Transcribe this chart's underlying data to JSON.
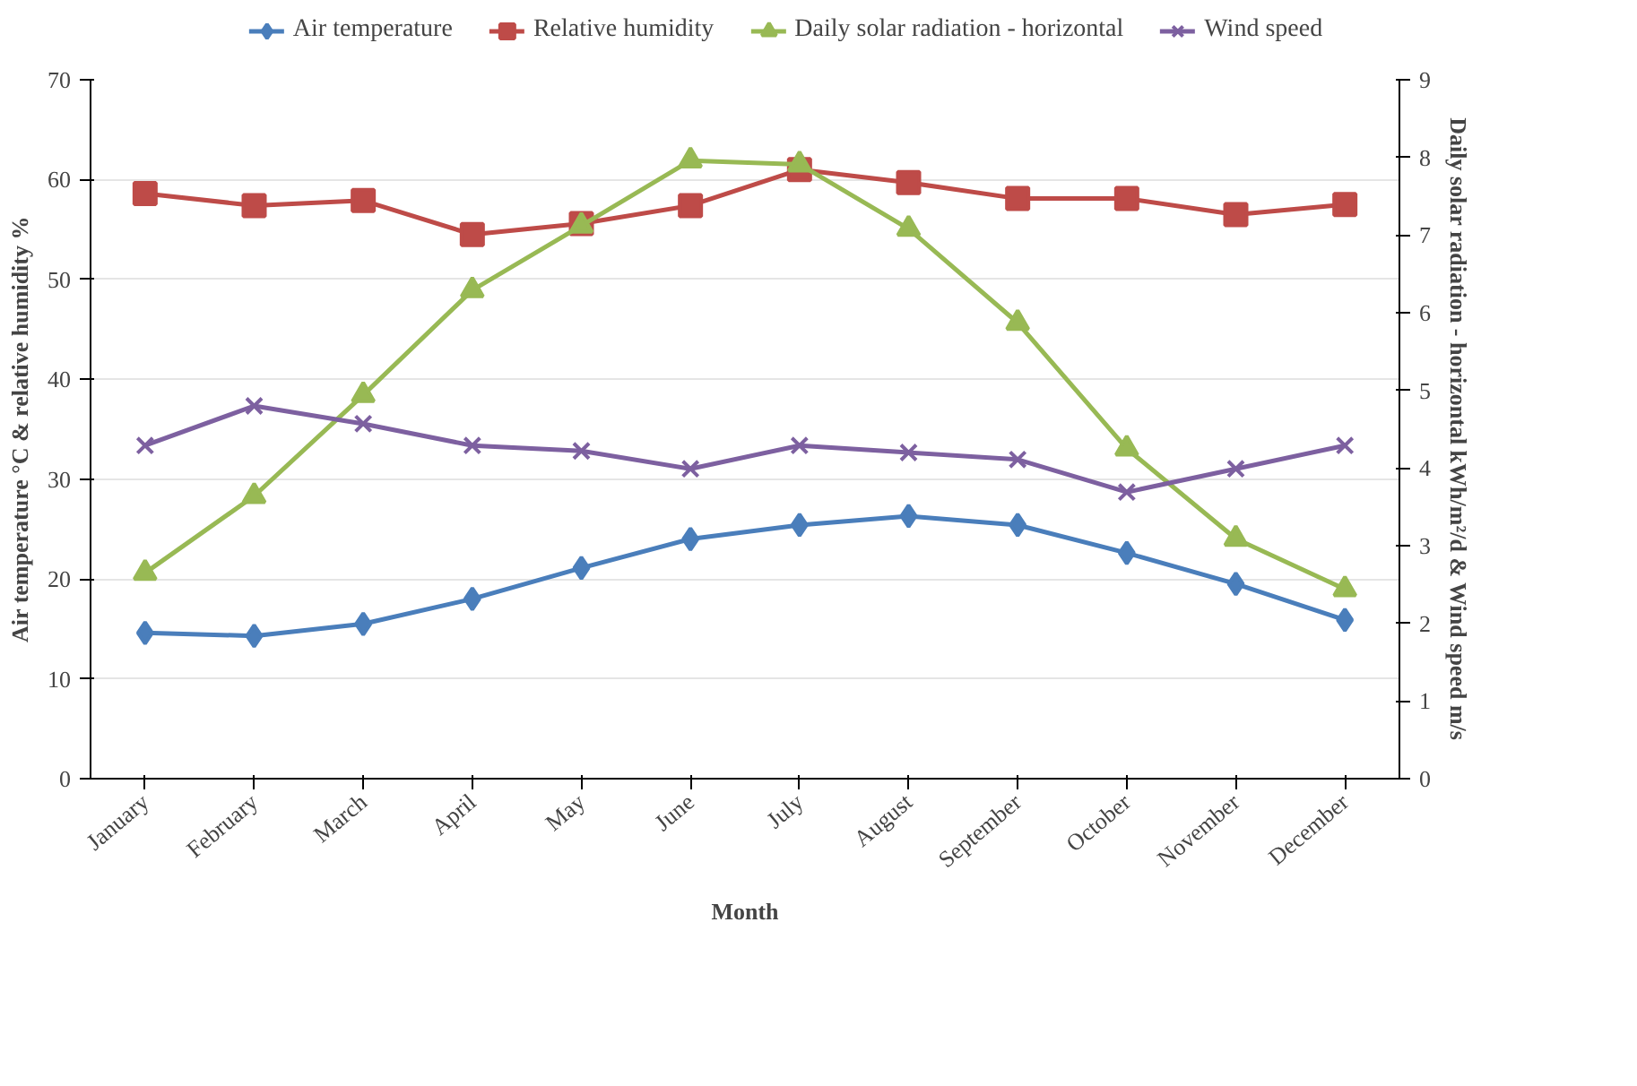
{
  "chart_data": {
    "type": "line",
    "xlabel": "Month",
    "ylabel": "Air temperature °C & relative humidity %",
    "y2label": "Daily solar radiation - horizontal kWh/m²/d & Wind speed m/s",
    "categories": [
      "January",
      "February",
      "March",
      "April",
      "May",
      "June",
      "July",
      "August",
      "September",
      "October",
      "November",
      "December"
    ],
    "series": [
      {
        "name": "Air temperature",
        "color": "#4a7ebb",
        "marker": "diamond",
        "values": [
          14.6,
          14.3,
          15.5,
          18.0,
          21.1,
          24.0,
          25.4,
          26.3,
          25.4,
          22.6,
          19.5,
          15.9
        ]
      },
      {
        "name": "Relative humidity",
        "color": "#be4b48",
        "marker": "square",
        "values": [
          58.6,
          57.4,
          57.9,
          54.5,
          55.6,
          57.4,
          61.0,
          59.7,
          58.1,
          58.1,
          56.5,
          57.5
        ]
      },
      {
        "name": "Daily solar radiation - horizontal",
        "color": "#98b954",
        "marker": "triangle",
        "axis": "y2",
        "values": [
          2.65,
          3.64,
          4.94,
          6.29,
          7.12,
          7.96,
          7.91,
          7.08,
          5.87,
          4.25,
          3.09,
          2.44
        ]
      },
      {
        "name": "Wind speed",
        "color": "#7d60a0",
        "marker": "cross",
        "axis": "y2",
        "values": [
          4.29,
          4.8,
          4.57,
          4.29,
          4.22,
          3.99,
          4.29,
          4.2,
          4.11,
          3.69,
          3.99,
          4.29
        ]
      }
    ],
    "ylim": [
      0,
      70
    ],
    "yticks": [
      0,
      10,
      20,
      30,
      40,
      50,
      60,
      70
    ],
    "y2lim": [
      0,
      9
    ],
    "y2ticks": [
      0,
      1,
      2,
      3,
      4,
      5,
      6,
      7,
      8,
      9
    ],
    "grid": "y",
    "legend": "top"
  }
}
